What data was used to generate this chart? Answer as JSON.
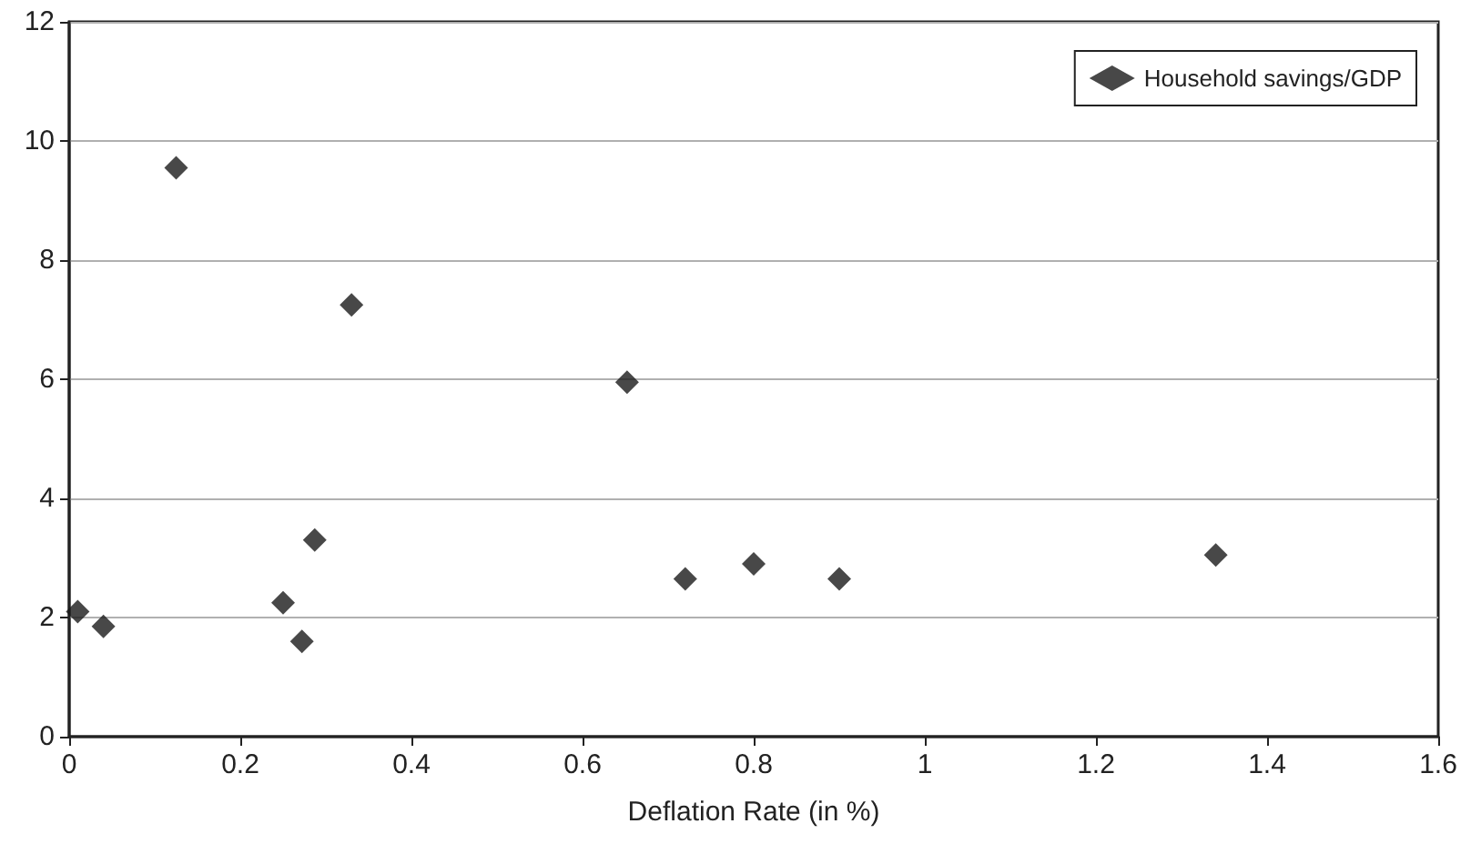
{
  "chart_data": {
    "type": "scatter",
    "xlabel": "Deflation Rate (in %)",
    "x": [
      0.01,
      0.04,
      0.125,
      0.25,
      0.272,
      0.287,
      0.33,
      0.652,
      0.72,
      0.8,
      0.9,
      1.34
    ],
    "series": [
      {
        "name": "Household savings/GDP",
        "color": "#1a1a1a",
        "values": [
          2.1,
          1.85,
          9.55,
          2.25,
          1.6,
          3.3,
          7.25,
          5.95,
          2.65,
          2.9,
          2.65,
          3.05
        ]
      }
    ],
    "xlim": [
      0,
      1.6
    ],
    "xticks": [
      0,
      0.2,
      0.4,
      0.6,
      0.8,
      1,
      1.2,
      1.4,
      1.6
    ],
    "ylim": [
      0,
      12
    ],
    "yticks": [
      0,
      2,
      4,
      6,
      8,
      10,
      12
    ],
    "grid": "y",
    "legend": "top right",
    "marker": "diamond"
  }
}
